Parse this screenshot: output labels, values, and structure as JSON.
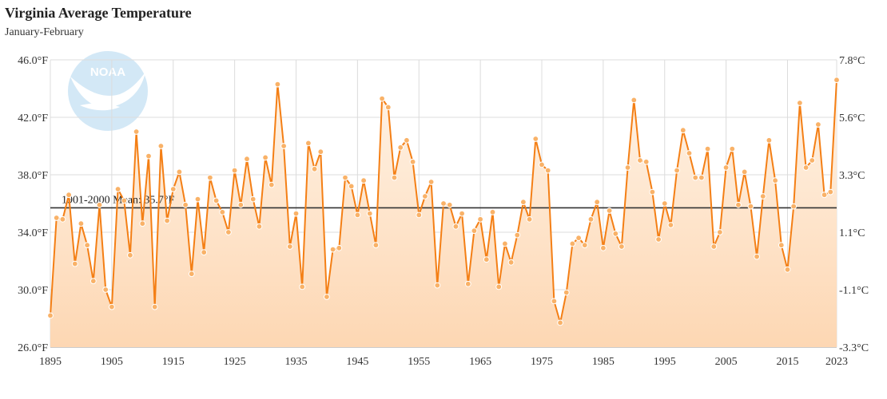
{
  "header": {
    "title": "Virginia Average Temperature",
    "subtitle": "January-February"
  },
  "logo": {
    "text": "NOAA"
  },
  "chart_data": {
    "type": "line",
    "title": "Virginia Average Temperature",
    "subtitle": "January-February",
    "x_range": [
      1895,
      2023
    ],
    "xticks": [
      "1895",
      "1905",
      "1915",
      "1925",
      "1935",
      "1945",
      "1955",
      "1965",
      "1975",
      "1985",
      "1995",
      "2005",
      "2015",
      "2023"
    ],
    "xtick_values": [
      1895,
      1905,
      1915,
      1925,
      1935,
      1945,
      1955,
      1965,
      1975,
      1985,
      1995,
      2005,
      2015,
      2023
    ],
    "ylim": [
      26.0,
      46.0
    ],
    "yticks_left": [
      "26.0°F",
      "30.0°F",
      "34.0°F",
      "38.0°F",
      "42.0°F",
      "46.0°F"
    ],
    "ytick_values": [
      26,
      30,
      34,
      38,
      42,
      46
    ],
    "yticks_right": [
      "-3.3°C",
      "-1.1°C",
      "1.1°C",
      "3.3°C",
      "5.6°C",
      "7.8°C"
    ],
    "mean": {
      "label": "1901-2000 Mean: 35.7°F",
      "value": 35.7
    },
    "grid": true,
    "colors": {
      "line": "#f47f15",
      "marker": "#f7a34a",
      "fill_top": "#fff1e2",
      "fill_bottom": "#fddcbc",
      "mean": "#333333"
    },
    "series": [
      {
        "values": [
          28.2,
          35.0,
          34.9,
          36.6,
          31.8,
          34.6,
          33.1,
          30.6,
          35.9,
          30.0,
          28.8,
          37.0,
          36.2,
          32.4,
          41.0,
          34.6,
          39.3,
          28.8,
          40.0,
          34.8,
          37.0,
          38.2,
          35.9,
          31.1,
          36.3,
          32.6,
          37.8,
          36.2,
          35.4,
          34.0,
          38.3,
          35.9,
          39.1,
          36.3,
          34.4,
          39.2,
          37.3,
          44.3,
          40.0,
          33.0,
          35.3,
          30.2,
          40.2,
          38.4,
          39.6,
          29.5,
          32.8,
          32.9,
          37.8,
          37.2,
          35.2,
          37.6,
          35.3,
          33.1,
          43.3,
          42.7,
          37.8,
          39.9,
          40.4,
          38.9,
          35.2,
          36.5,
          37.5,
          30.3,
          36.0,
          35.9,
          34.4,
          35.3,
          30.4,
          34.1,
          34.9,
          32.1,
          35.4,
          30.2,
          33.2,
          31.9,
          33.8,
          36.1,
          34.9,
          40.5,
          38.7,
          38.3,
          29.2,
          27.7,
          29.8,
          33.2,
          33.6,
          33.1,
          34.9,
          36.1,
          32.9,
          35.5,
          33.9,
          33.0,
          38.5,
          43.2,
          39.0,
          38.9,
          36.8,
          33.5,
          36.0,
          34.5,
          38.3,
          41.1,
          39.5,
          37.8,
          37.8,
          39.8,
          33.0,
          34.0,
          38.5,
          39.8,
          35.9,
          38.2,
          35.8,
          32.3,
          36.5,
          40.4,
          37.6,
          33.1,
          31.4,
          35.8,
          43.0,
          38.5,
          39.0,
          41.5,
          36.6,
          36.8,
          44.6
        ]
      }
    ]
  }
}
